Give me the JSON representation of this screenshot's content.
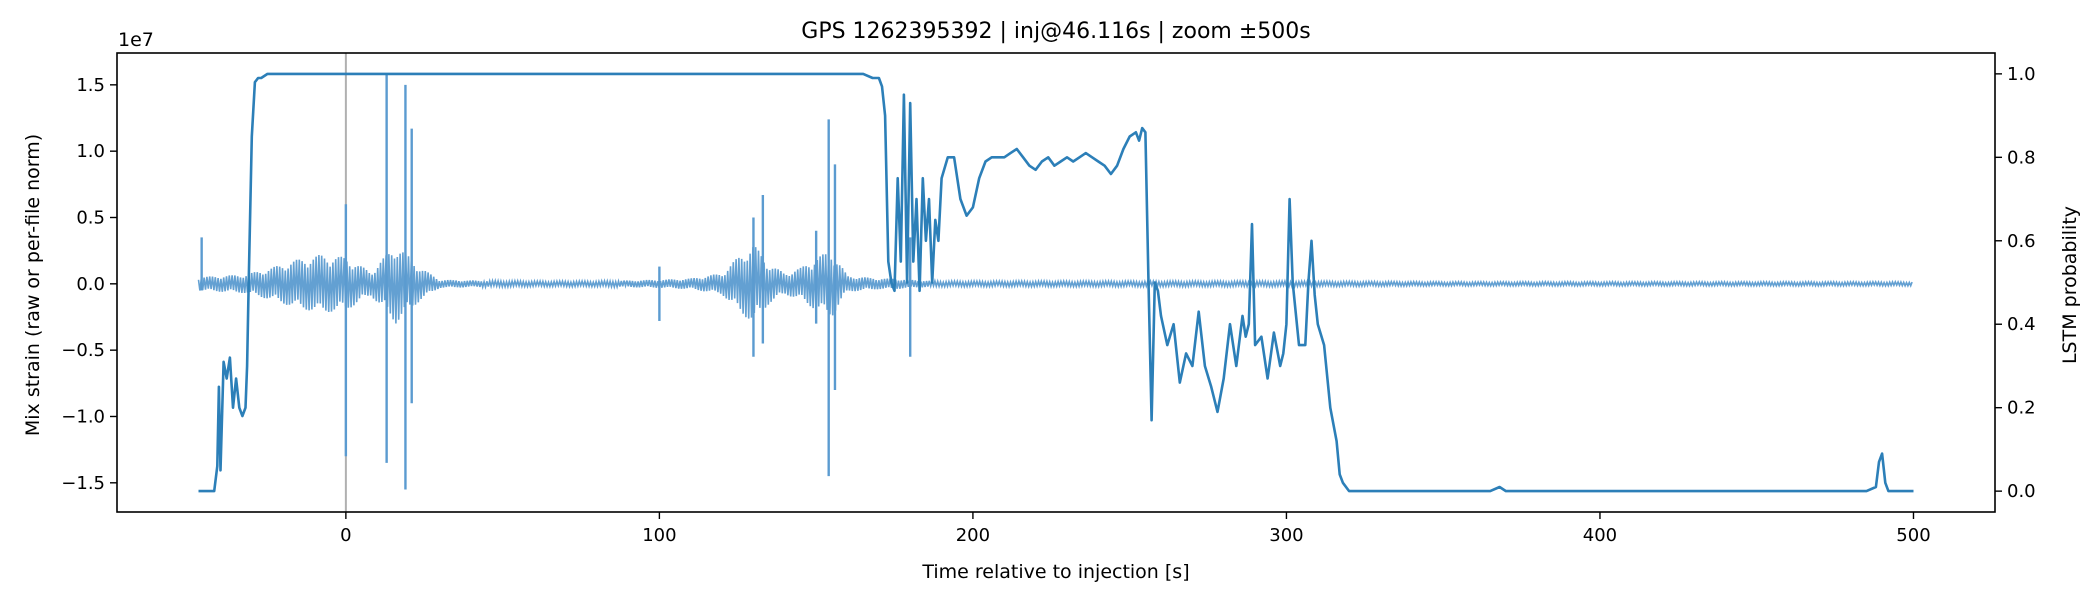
{
  "chart_data": {
    "type": "line",
    "title": "GPS 1262395392 | inj@46.116s | zoom ±500s",
    "xlabel": "Time relative to injection [s]",
    "ylabel_left": "Mix strain (raw or per-file norm)",
    "ylabel_right": "LSTM probability",
    "offset_text": "1e7",
    "xlim": [
      -73,
      526
    ],
    "ylim_left": [
      -1.72,
      1.74
    ],
    "ylim_left_unit": "1e7",
    "ylim_right": [
      -0.05,
      1.05
    ],
    "x_ticks": [
      "0",
      "100",
      "200",
      "300",
      "400",
      "500"
    ],
    "y_left_ticks": [
      "−1.5",
      "−1.0",
      "−0.5",
      "0.0",
      "0.5",
      "1.0",
      "1.5"
    ],
    "y_right_ticks": [
      "0.0",
      "0.2",
      "0.4",
      "0.6",
      "0.8",
      "1.0"
    ],
    "injection_marker_x": 0,
    "grid": false,
    "colors": {
      "strain": "#5b9bd0",
      "lstm": "#2c7fb8",
      "marker": "#b0b0b0",
      "axis": "#000000"
    },
    "series": [
      {
        "axis": "left",
        "envelope_x": [
          -47,
          -40,
          -32,
          -24,
          -16,
          -8,
          0,
          8,
          16,
          24,
          30,
          40,
          60,
          80,
          100,
          110,
          120,
          125,
          130,
          135,
          140,
          145,
          150,
          155,
          160,
          165,
          170,
          175,
          180,
          190,
          200,
          250,
          300,
          350,
          400,
          450,
          500
        ],
        "envelope_amp": [
          0.05,
          0.06,
          0.07,
          0.12,
          0.18,
          0.22,
          0.2,
          0.09,
          0.3,
          0.12,
          0.03,
          0.025,
          0.02,
          0.02,
          0.03,
          0.04,
          0.08,
          0.2,
          0.3,
          0.15,
          0.08,
          0.12,
          0.2,
          0.25,
          0.06,
          0.05,
          0.04,
          0.04,
          0.03,
          0.02,
          0.02,
          0.02,
          0.02,
          0.015,
          0.015,
          0.015,
          0.015
        ],
        "spikes": [
          {
            "x": -46,
            "lo": -0.05,
            "hi": 0.35
          },
          {
            "x": 0,
            "lo": -1.3,
            "hi": 0.6
          },
          {
            "x": 13,
            "lo": -1.35,
            "hi": 1.58
          },
          {
            "x": 19,
            "lo": -1.55,
            "hi": 1.5
          },
          {
            "x": 21,
            "lo": -0.9,
            "hi": 1.17
          },
          {
            "x": 100,
            "lo": -0.28,
            "hi": 0.13
          },
          {
            "x": 130,
            "lo": -0.55,
            "hi": 0.5
          },
          {
            "x": 133,
            "lo": -0.45,
            "hi": 0.67
          },
          {
            "x": 150,
            "lo": -0.3,
            "hi": 0.4
          },
          {
            "x": 154,
            "lo": -1.45,
            "hi": 1.24
          },
          {
            "x": 156,
            "lo": -0.8,
            "hi": 0.9
          },
          {
            "x": 180,
            "lo": -0.55,
            "hi": 0.35
          }
        ]
      },
      {
        "axis": "right",
        "x": [
          -47,
          -44,
          -42,
          -41,
          -40.5,
          -40,
          -39,
          -38,
          -37,
          -36,
          -35,
          -34,
          -33,
          -32,
          -31.5,
          -31,
          -30,
          -29,
          -28,
          -27,
          -25,
          -20,
          -10,
          0,
          50,
          100,
          150,
          165,
          168,
          170,
          171,
          172,
          173,
          174,
          175,
          176,
          177,
          178,
          179,
          180,
          181,
          182,
          183,
          184,
          185,
          186,
          187,
          188,
          189,
          190,
          192,
          194,
          196,
          198,
          200,
          202,
          204,
          206,
          208,
          210,
          212,
          214,
          216,
          218,
          220,
          222,
          224,
          226,
          228,
          230,
          232,
          234,
          236,
          238,
          240,
          242,
          244,
          246,
          248,
          250,
          252,
          253,
          254,
          255,
          256,
          257,
          258,
          259,
          260,
          262,
          264,
          266,
          268,
          270,
          272,
          274,
          276,
          278,
          280,
          282,
          284,
          286,
          287,
          288,
          289,
          290,
          292,
          294,
          296,
          298,
          299,
          300,
          301,
          302,
          304,
          306,
          307,
          308,
          309,
          310,
          312,
          314,
          316,
          317,
          318,
          320,
          325,
          330,
          350,
          365,
          368,
          370,
          375,
          400,
          450,
          475,
          485,
          488,
          489,
          490,
          491,
          492,
          495,
          500
        ],
        "y": [
          0.0,
          0.0,
          0.0,
          0.06,
          0.25,
          0.05,
          0.31,
          0.27,
          0.32,
          0.2,
          0.27,
          0.2,
          0.18,
          0.2,
          0.3,
          0.5,
          0.85,
          0.98,
          0.99,
          0.99,
          1.0,
          1.0,
          1.0,
          1.0,
          1.0,
          1.0,
          1.0,
          1.0,
          0.99,
          0.99,
          0.97,
          0.9,
          0.55,
          0.5,
          0.48,
          0.75,
          0.55,
          0.95,
          0.5,
          0.93,
          0.55,
          0.7,
          0.48,
          0.75,
          0.6,
          0.7,
          0.5,
          0.65,
          0.6,
          0.75,
          0.8,
          0.8,
          0.7,
          0.66,
          0.68,
          0.75,
          0.79,
          0.8,
          0.8,
          0.8,
          0.81,
          0.82,
          0.8,
          0.78,
          0.77,
          0.79,
          0.8,
          0.78,
          0.79,
          0.8,
          0.79,
          0.8,
          0.81,
          0.8,
          0.79,
          0.78,
          0.76,
          0.78,
          0.82,
          0.85,
          0.86,
          0.84,
          0.87,
          0.86,
          0.5,
          0.17,
          0.5,
          0.48,
          0.42,
          0.35,
          0.4,
          0.26,
          0.33,
          0.3,
          0.43,
          0.3,
          0.25,
          0.19,
          0.27,
          0.4,
          0.3,
          0.42,
          0.37,
          0.4,
          0.64,
          0.35,
          0.37,
          0.27,
          0.38,
          0.3,
          0.33,
          0.4,
          0.7,
          0.5,
          0.35,
          0.35,
          0.5,
          0.6,
          0.47,
          0.4,
          0.35,
          0.2,
          0.12,
          0.04,
          0.02,
          0.0,
          0.0,
          0.0,
          0.0,
          0.0,
          0.01,
          0.0,
          0.0,
          0.0,
          0.0,
          0.0,
          0.0,
          0.01,
          0.07,
          0.09,
          0.02,
          0.0,
          0.0,
          0.0
        ]
      }
    ]
  }
}
